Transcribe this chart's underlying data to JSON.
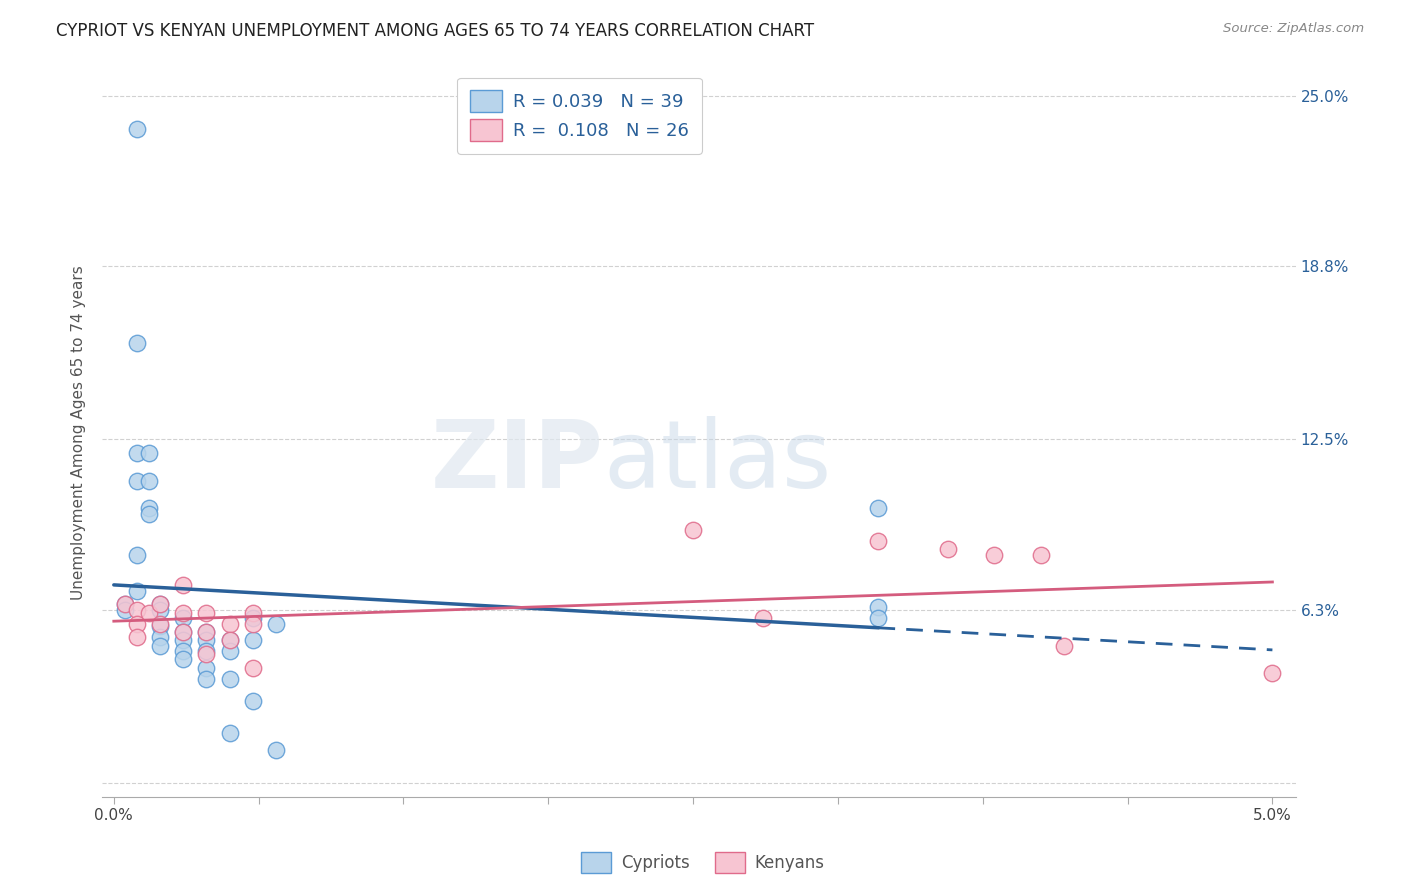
{
  "title": "CYPRIOT VS KENYAN UNEMPLOYMENT AMONG AGES 65 TO 74 YEARS CORRELATION CHART",
  "source": "Source: ZipAtlas.com",
  "ylabel": "Unemployment Among Ages 65 to 74 years",
  "xlim": [
    -0.0005,
    0.051
  ],
  "ylim": [
    -0.005,
    0.26
  ],
  "ytick_positions": [
    0.0,
    0.063,
    0.125,
    0.188,
    0.25
  ],
  "ytick_labels_right": [
    "",
    "6.3%",
    "12.5%",
    "18.8%",
    "25.0%"
  ],
  "xtick_positions": [
    0.0,
    0.00625,
    0.0125,
    0.01875,
    0.025,
    0.03125,
    0.0375,
    0.04375,
    0.05
  ],
  "xtick_labels": [
    "0.0%",
    "",
    "",
    "",
    "",
    "",
    "",
    "",
    "5.0%"
  ],
  "cypriot_fill": "#b8d4eb",
  "cypriot_edge": "#5b9bd5",
  "kenyan_fill": "#f7c5d2",
  "kenyan_edge": "#e06b8b",
  "cypriot_line_color": "#2a6099",
  "kenyan_line_color": "#d45c7e",
  "cypriot_R": 0.039,
  "cypriot_N": 39,
  "kenyan_R": 0.108,
  "kenyan_N": 26,
  "legend_label_cypriot": "Cypriots",
  "legend_label_kenyan": "Kenyans",
  "watermark_zip": "ZIP",
  "watermark_atlas": "atlas",
  "background_color": "#ffffff",
  "grid_color": "#cccccc",
  "cypriot_x": [
    0.0005,
    0.0005,
    0.001,
    0.001,
    0.001,
    0.001,
    0.001,
    0.001,
    0.0015,
    0.0015,
    0.0015,
    0.0015,
    0.002,
    0.002,
    0.002,
    0.002,
    0.002,
    0.003,
    0.003,
    0.003,
    0.003,
    0.003,
    0.004,
    0.004,
    0.004,
    0.004,
    0.004,
    0.005,
    0.005,
    0.005,
    0.005,
    0.006,
    0.006,
    0.006,
    0.007,
    0.007,
    0.033,
    0.033,
    0.033
  ],
  "cypriot_y": [
    0.065,
    0.063,
    0.238,
    0.16,
    0.12,
    0.11,
    0.083,
    0.07,
    0.12,
    0.11,
    0.1,
    0.098,
    0.065,
    0.063,
    0.057,
    0.053,
    0.05,
    0.06,
    0.055,
    0.052,
    0.048,
    0.045,
    0.055,
    0.052,
    0.048,
    0.042,
    0.038,
    0.052,
    0.048,
    0.038,
    0.018,
    0.06,
    0.052,
    0.03,
    0.058,
    0.012,
    0.1,
    0.064,
    0.06
  ],
  "kenyan_x": [
    0.0005,
    0.001,
    0.001,
    0.001,
    0.0015,
    0.002,
    0.002,
    0.003,
    0.003,
    0.003,
    0.004,
    0.004,
    0.004,
    0.005,
    0.005,
    0.006,
    0.006,
    0.006,
    0.025,
    0.028,
    0.033,
    0.036,
    0.038,
    0.04,
    0.041,
    0.05
  ],
  "kenyan_y": [
    0.065,
    0.063,
    0.058,
    0.053,
    0.062,
    0.065,
    0.058,
    0.072,
    0.062,
    0.055,
    0.062,
    0.055,
    0.047,
    0.058,
    0.052,
    0.062,
    0.058,
    0.042,
    0.092,
    0.06,
    0.088,
    0.085,
    0.083,
    0.083,
    0.05,
    0.04
  ],
  "title_fontsize": 12,
  "tick_fontsize": 11,
  "ylabel_fontsize": 11
}
